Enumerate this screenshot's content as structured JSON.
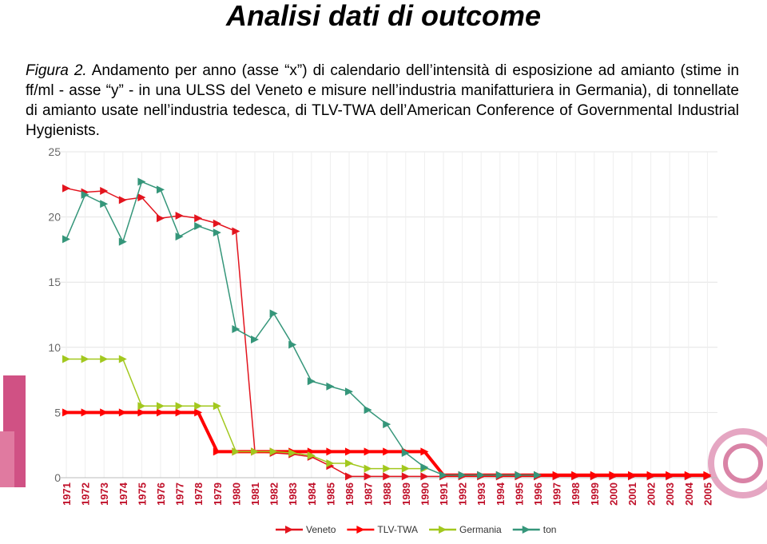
{
  "chart_data": {
    "type": "line",
    "title": "Analisi dati di outcome",
    "caption_label": "Figura 2.",
    "caption": "Andamento per anno (asse “x”) di calendario dell’intensità di esposizione ad amianto (stime in ff/ml - asse “y” - in una ULSS del Veneto e misure nell’industria manifatturiera in Germania), di tonnellate di amianto usate nell’industria tedesca, di TLV-TWA dell’American Conference of Governmental Industrial Hygienists.",
    "categories": [
      "1971",
      "1972",
      "1973",
      "1974",
      "1975",
      "1976",
      "1977",
      "1978",
      "1979",
      "1980",
      "1981",
      "1982",
      "1983",
      "1984",
      "1985",
      "1986",
      "1987",
      "1988",
      "1989",
      "1990",
      "1991",
      "1992",
      "1993",
      "1994",
      "1995",
      "1996",
      "1997",
      "1998",
      "1999",
      "2000",
      "2001",
      "2002",
      "2003",
      "2004",
      "2005"
    ],
    "ylim": [
      0,
      25
    ],
    "yticks": [
      0,
      5,
      10,
      15,
      20,
      25
    ],
    "grid": true,
    "legend": "bottom",
    "series": [
      {
        "name": "Veneto",
        "color": "#e3141e",
        "values": [
          22.2,
          21.9,
          22.0,
          21.3,
          21.5,
          19.9,
          20.1,
          19.9,
          19.5,
          18.9,
          2.0,
          1.9,
          1.8,
          1.6,
          0.9,
          0.1,
          0.1,
          0.1,
          0.1,
          0.1,
          0.1,
          0.1,
          0.1,
          0.1,
          0.1,
          0.1,
          0.1,
          0.1,
          0.1,
          0.1,
          0.1,
          0.1,
          0.1,
          0.1,
          0.1
        ]
      },
      {
        "name": "TLV-TWA",
        "color": "#ff0000",
        "values": [
          5,
          5,
          5,
          5,
          5,
          5,
          5,
          5,
          2.0,
          2.0,
          2.0,
          2.0,
          2.0,
          2.0,
          2.0,
          2.0,
          2.0,
          2.0,
          2.0,
          2.0,
          0.2,
          0.2,
          0.2,
          0.2,
          0.2,
          0.2,
          0.2,
          0.2,
          0.2,
          0.2,
          0.2,
          0.2,
          0.2,
          0.2,
          0.2
        ]
      },
      {
        "name": "Germania",
        "color": "#a2c81e",
        "values": [
          9.1,
          9.1,
          9.1,
          9.1,
          5.5,
          5.5,
          5.5,
          5.5,
          5.5,
          2.0,
          2.0,
          2.0,
          1.9,
          1.7,
          1.1,
          1.1,
          0.7,
          0.7,
          0.7,
          0.7,
          null,
          null,
          null,
          null,
          null,
          null,
          null,
          null,
          null,
          null,
          null,
          null,
          null,
          null,
          null
        ]
      },
      {
        "name": "ton",
        "color": "#35967a",
        "values": [
          18.3,
          21.7,
          21.0,
          18.1,
          22.7,
          22.1,
          18.5,
          19.3,
          18.8,
          11.4,
          10.6,
          12.6,
          10.2,
          7.4,
          7.0,
          6.6,
          5.2,
          4.1,
          1.9,
          0.8,
          0.2,
          0.2,
          0.2,
          0.2,
          0.2,
          0.2,
          null,
          null,
          null,
          null,
          null,
          null,
          null,
          null,
          null
        ]
      }
    ]
  }
}
